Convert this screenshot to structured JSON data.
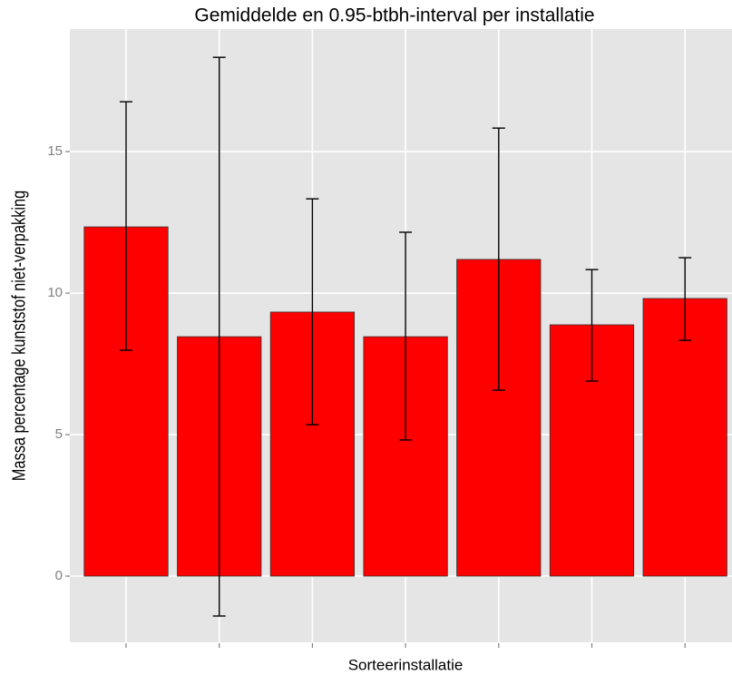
{
  "chart_data": {
    "type": "bar",
    "title": "Gemiddelde en 0.95-btbh-interval per installatie",
    "x_label": "Sorteerinstallatie",
    "y_label": "Massa percentage kunststof niet-verpakking",
    "categories": [
      null,
      null,
      null,
      null,
      null,
      null,
      null
    ],
    "series": [
      {
        "color": "#ff0000",
        "values": [
          12.34,
          8.46,
          9.33,
          8.46,
          11.19,
          8.88,
          9.81
        ],
        "lower": [
          7.98,
          -1.41,
          5.35,
          4.81,
          6.57,
          6.89,
          8.33
        ],
        "upper": [
          16.76,
          18.33,
          13.33,
          12.15,
          15.83,
          10.83,
          11.25
        ]
      }
    ],
    "ylim": [
      -2.34,
      19.33
    ],
    "yticks": [
      0,
      5,
      10,
      15
    ],
    "grid": true
  }
}
